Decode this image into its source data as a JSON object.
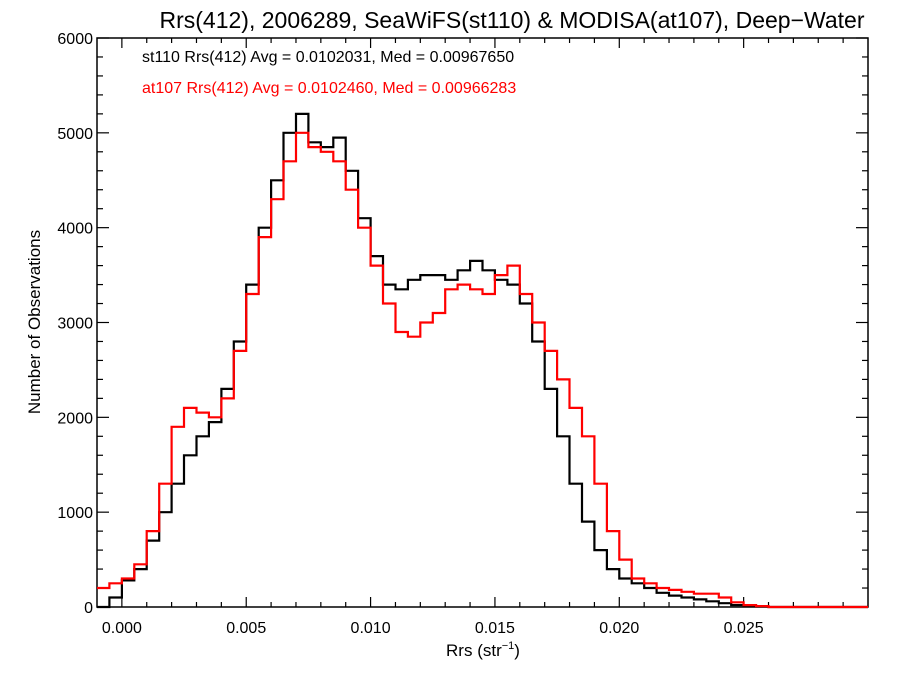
{
  "chart_data": {
    "type": "line",
    "title": "Rrs(412), 2006289, SeaWiFS(st110) & MODISA(at107), Deep−Water",
    "xlabel": "Rrs (str",
    "xlabel_sup": "−1",
    "xlabel_close": ")",
    "ylabel": "Number of Observations",
    "xlim": [
      -0.001,
      0.03
    ],
    "ylim": [
      0,
      6000
    ],
    "xticks": [
      0.0,
      0.005,
      0.01,
      0.015,
      0.02,
      0.025
    ],
    "xtick_labels": [
      "0.000",
      "0.005",
      "0.010",
      "0.015",
      "0.020",
      "0.025"
    ],
    "yticks": [
      0,
      1000,
      2000,
      3000,
      4000,
      5000,
      6000
    ],
    "ytick_labels": [
      "0",
      "1000",
      "2000",
      "3000",
      "4000",
      "5000",
      "6000"
    ],
    "step": true,
    "series": [
      {
        "name": "st110",
        "legend": "st110 Rrs(412) Avg = 0.0102031, Med = 0.00967650",
        "color": "#000000",
        "x": [
          -0.001,
          -0.0005,
          0.0,
          0.0005,
          0.001,
          0.0015,
          0.002,
          0.0025,
          0.003,
          0.0035,
          0.004,
          0.0045,
          0.005,
          0.0055,
          0.006,
          0.0065,
          0.007,
          0.0075,
          0.008,
          0.0085,
          0.009,
          0.0095,
          0.01,
          0.0105,
          0.011,
          0.0115,
          0.012,
          0.0125,
          0.013,
          0.0135,
          0.014,
          0.0145,
          0.015,
          0.0155,
          0.016,
          0.0165,
          0.017,
          0.0175,
          0.018,
          0.0185,
          0.019,
          0.0195,
          0.02,
          0.0205,
          0.021,
          0.0215,
          0.022,
          0.0225,
          0.023,
          0.0235,
          0.024,
          0.0245,
          0.025,
          0.0255,
          0.026,
          0.0265,
          0.027,
          0.028,
          0.029,
          0.03
        ],
        "y": [
          0,
          100,
          280,
          400,
          700,
          1000,
          1300,
          1600,
          1800,
          1950,
          2300,
          2800,
          3400,
          4000,
          4500,
          5000,
          5200,
          4900,
          4850,
          4950,
          4600,
          4100,
          3700,
          3400,
          3350,
          3450,
          3500,
          3500,
          3450,
          3550,
          3650,
          3550,
          3450,
          3400,
          3200,
          2800,
          2300,
          1800,
          1300,
          900,
          600,
          400,
          300,
          250,
          200,
          150,
          120,
          100,
          80,
          60,
          40,
          20,
          10,
          5,
          0,
          0,
          0,
          0,
          0,
          0
        ]
      },
      {
        "name": "at107",
        "legend": "at107 Rrs(412) Avg = 0.0102460, Med = 0.00966283",
        "color": "#ff0000",
        "x": [
          -0.001,
          -0.0005,
          0.0,
          0.0005,
          0.001,
          0.0015,
          0.002,
          0.0025,
          0.003,
          0.0035,
          0.004,
          0.0045,
          0.005,
          0.0055,
          0.006,
          0.0065,
          0.007,
          0.0075,
          0.008,
          0.0085,
          0.009,
          0.0095,
          0.01,
          0.0105,
          0.011,
          0.0115,
          0.012,
          0.0125,
          0.013,
          0.0135,
          0.014,
          0.0145,
          0.015,
          0.0155,
          0.016,
          0.0165,
          0.017,
          0.0175,
          0.018,
          0.0185,
          0.019,
          0.0195,
          0.02,
          0.0205,
          0.021,
          0.0215,
          0.022,
          0.0225,
          0.023,
          0.0235,
          0.024,
          0.0245,
          0.025,
          0.0255,
          0.026,
          0.0265,
          0.027,
          0.028,
          0.029,
          0.03
        ],
        "y": [
          200,
          250,
          300,
          450,
          800,
          1300,
          1900,
          2100,
          2050,
          2000,
          2200,
          2700,
          3300,
          3900,
          4300,
          4700,
          5000,
          4850,
          4800,
          4700,
          4400,
          4000,
          3600,
          3200,
          2900,
          2850,
          3000,
          3100,
          3350,
          3400,
          3350,
          3300,
          3500,
          3600,
          3300,
          3000,
          2700,
          2400,
          2100,
          1800,
          1300,
          800,
          500,
          300,
          250,
          200,
          180,
          160,
          140,
          140,
          100,
          50,
          20,
          10,
          0,
          0,
          0,
          0,
          0,
          0
        ]
      }
    ]
  }
}
